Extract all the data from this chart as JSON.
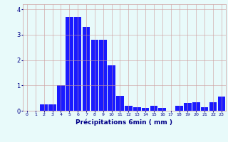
{
  "categories": [
    0,
    1,
    2,
    3,
    4,
    5,
    6,
    7,
    8,
    9,
    10,
    11,
    12,
    13,
    14,
    15,
    16,
    17,
    18,
    19,
    20,
    21,
    22,
    23
  ],
  "values": [
    0,
    0,
    0.25,
    0.25,
    1.0,
    3.7,
    3.7,
    3.3,
    2.8,
    2.8,
    1.8,
    0.6,
    0.2,
    0.15,
    0.1,
    0.2,
    0.1,
    0.0,
    0.2,
    0.3,
    0.35,
    0.15,
    0.35,
    0.55
  ],
  "bar_color": "#1a1aff",
  "background_color": "#e8fafa",
  "grid_color": "#cc9999",
  "xlabel": "Précipitations 6min ( mm )",
  "xlabel_color": "#000088",
  "tick_color": "#000088",
  "ylim": [
    0,
    4.2
  ],
  "yticks": [
    0,
    1,
    2,
    3,
    4
  ],
  "figsize": [
    3.2,
    2.0
  ],
  "dpi": 100,
  "bar_width": 0.9
}
